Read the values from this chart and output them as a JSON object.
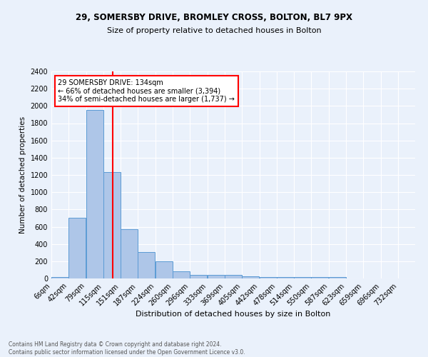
{
  "title1": "29, SOMERSBY DRIVE, BROMLEY CROSS, BOLTON, BL7 9PX",
  "title2": "Size of property relative to detached houses in Bolton",
  "xlabel": "Distribution of detached houses by size in Bolton",
  "ylabel": "Number of detached properties",
  "bin_labels": [
    "6sqm",
    "42sqm",
    "79sqm",
    "115sqm",
    "151sqm",
    "187sqm",
    "224sqm",
    "260sqm",
    "296sqm",
    "333sqm",
    "369sqm",
    "405sqm",
    "442sqm",
    "478sqm",
    "514sqm",
    "550sqm",
    "587sqm",
    "623sqm",
    "659sqm",
    "696sqm",
    "732sqm"
  ],
  "bar_heights": [
    20,
    700,
    1950,
    1230,
    570,
    305,
    200,
    80,
    45,
    40,
    40,
    25,
    20,
    20,
    20,
    15,
    20,
    0,
    0,
    0,
    0
  ],
  "bar_color": "#aec6e8",
  "bar_edge_color": "#5b9bd5",
  "property_line_x": 134,
  "bin_edges_sqm": [
    6,
    42,
    79,
    115,
    151,
    187,
    224,
    260,
    296,
    333,
    369,
    405,
    442,
    478,
    514,
    550,
    587,
    623,
    659,
    696,
    732
  ],
  "annotation_text": "29 SOMERSBY DRIVE: 134sqm\n← 66% of detached houses are smaller (3,394)\n34% of semi-detached houses are larger (1,737) →",
  "annotation_box_color": "white",
  "annotation_box_edge": "red",
  "red_line_color": "red",
  "footnote": "Contains HM Land Registry data © Crown copyright and database right 2024.\nContains public sector information licensed under the Open Government Licence v3.0.",
  "ylim": [
    0,
    2400
  ],
  "background_color": "#eaf1fb",
  "grid_color": "white"
}
